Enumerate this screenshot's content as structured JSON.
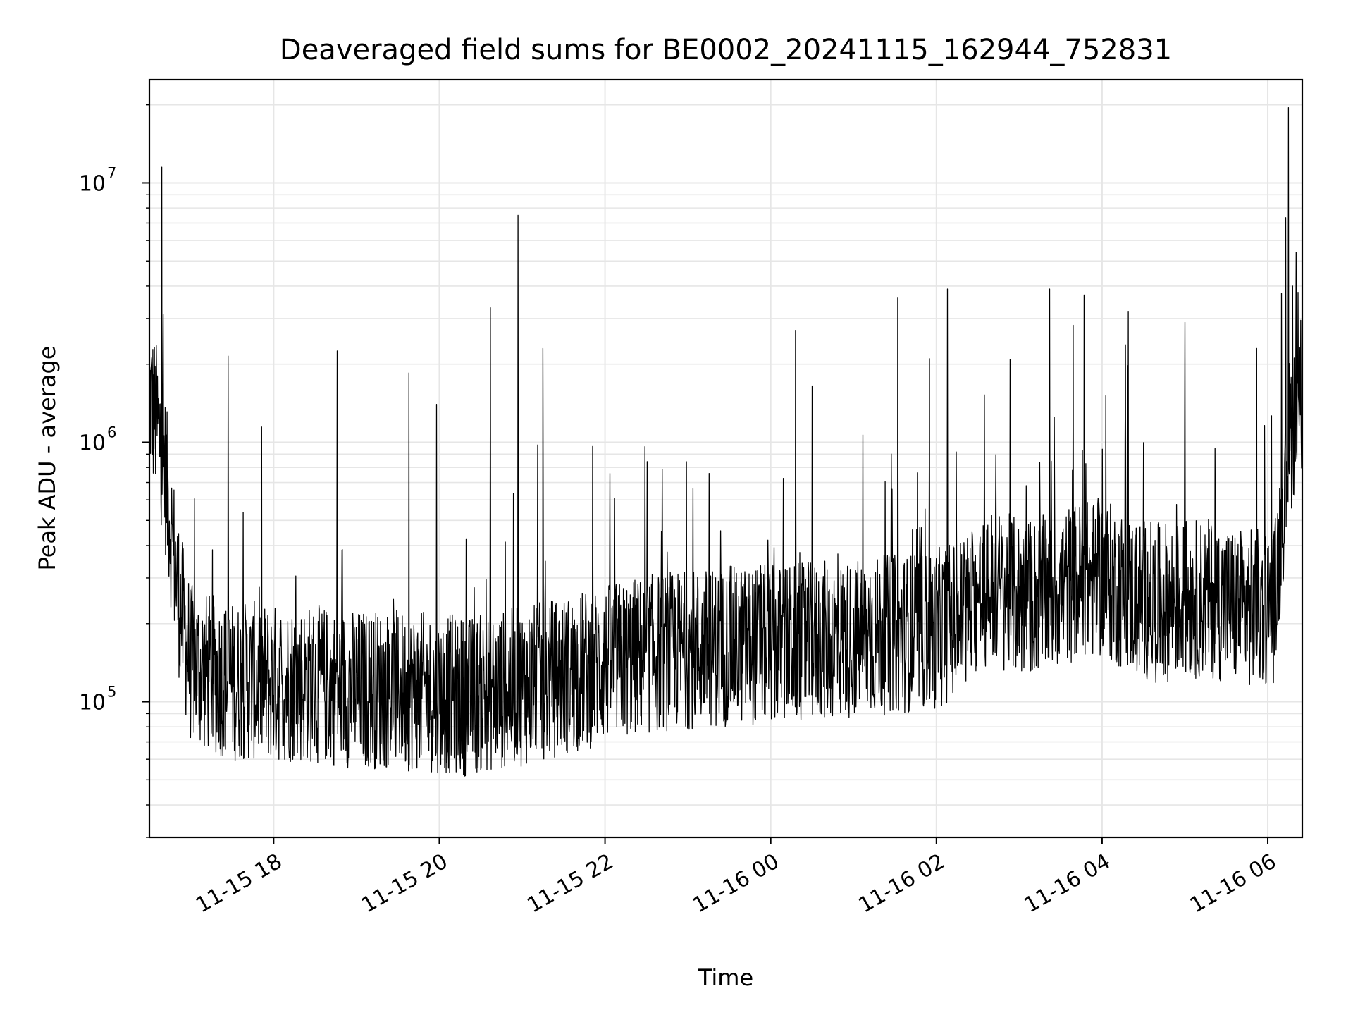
{
  "chart_data": {
    "type": "line",
    "title": "Deaveraged field sums for BE0002_20241115_162944_752831",
    "xlabel": "Time",
    "ylabel": "Peak ADU - average",
    "yscale": "log",
    "ylim": [
      30000,
      25000000
    ],
    "xlim": [
      "2024-11-15 16:30",
      "2024-11-16 06:25"
    ],
    "grid": true,
    "line_color": "#000000",
    "grid_color": "#e6e6e6",
    "x_ticks": [
      {
        "value": "2024-11-15 18:00",
        "label": "11-15 18"
      },
      {
        "value": "2024-11-15 20:00",
        "label": "11-15 20"
      },
      {
        "value": "2024-11-15 22:00",
        "label": "11-15 22"
      },
      {
        "value": "2024-11-16 00:00",
        "label": "11-16 00"
      },
      {
        "value": "2024-11-16 02:00",
        "label": "11-16 02"
      },
      {
        "value": "2024-11-16 04:00",
        "label": "11-16 04"
      },
      {
        "value": "2024-11-16 06:00",
        "label": "11-16 06"
      }
    ],
    "y_ticks": [
      {
        "value": 100000,
        "base": "10",
        "exp": "5"
      },
      {
        "value": 1000000,
        "base": "10",
        "exp": "6"
      },
      {
        "value": 10000000,
        "base": "10",
        "exp": "7"
      }
    ],
    "series": [
      {
        "x": [
          "2024-11-15 16:30",
          "2024-11-15 16:35",
          "2024-11-15 16:40",
          "2024-11-15 16:45",
          "2024-11-15 16:50",
          "2024-11-15 16:55",
          "2024-11-15 17:00",
          "2024-11-15 17:10",
          "2024-11-15 17:20",
          "2024-11-15 17:30",
          "2024-11-15 17:45",
          "2024-11-15 18:00",
          "2024-11-15 18:20",
          "2024-11-15 18:40",
          "2024-11-15 19:00",
          "2024-11-15 19:20",
          "2024-11-15 19:40",
          "2024-11-15 20:00",
          "2024-11-15 20:20",
          "2024-11-15 20:40",
          "2024-11-15 21:00",
          "2024-11-15 21:20",
          "2024-11-15 21:40",
          "2024-11-15 22:00",
          "2024-11-15 22:20",
          "2024-11-15 22:40",
          "2024-11-15 23:00",
          "2024-11-15 23:20",
          "2024-11-15 23:40",
          "2024-11-16 00:00",
          "2024-11-16 00:20",
          "2024-11-16 00:40",
          "2024-11-16 01:00",
          "2024-11-16 01:20",
          "2024-11-16 01:40",
          "2024-11-16 02:00",
          "2024-11-16 02:20",
          "2024-11-16 02:40",
          "2024-11-16 03:00",
          "2024-11-16 03:20",
          "2024-11-16 03:40",
          "2024-11-16 04:00",
          "2024-11-16 04:20",
          "2024-11-16 04:40",
          "2024-11-16 05:00",
          "2024-11-16 05:20",
          "2024-11-16 05:40",
          "2024-11-16 05:55",
          "2024-11-16 06:05",
          "2024-11-16 06:10",
          "2024-11-16 06:15",
          "2024-11-16 06:20",
          "2024-11-16 06:25"
        ],
        "y": [
          1500000,
          1200000,
          900000,
          500000,
          280000,
          190000,
          140000,
          130000,
          125000,
          120000,
          120000,
          118000,
          118000,
          115000,
          112000,
          112000,
          110000,
          108000,
          105000,
          110000,
          115000,
          122000,
          130000,
          140000,
          148000,
          155000,
          160000,
          162000,
          165000,
          165000,
          168000,
          172000,
          175000,
          180000,
          185000,
          190000,
          220000,
          280000,
          250000,
          260000,
          290000,
          300000,
          260000,
          240000,
          250000,
          250000,
          230000,
          230000,
          240000,
          500000,
          1000000,
          1300000,
          1400000
        ],
        "peaks": [
          {
            "x": "2024-11-15 16:39",
            "y": 11500000
          },
          {
            "x": "2024-11-15 20:57",
            "y": 7500000
          },
          {
            "x": "2024-11-15 20:37",
            "y": 3300000
          },
          {
            "x": "2024-11-15 21:15",
            "y": 2300000
          },
          {
            "x": "2024-11-15 18:46",
            "y": 2250000
          },
          {
            "x": "2024-11-15 17:27",
            "y": 2150000
          },
          {
            "x": "2024-11-15 19:38",
            "y": 1850000
          },
          {
            "x": "2024-11-15 19:58",
            "y": 1400000
          },
          {
            "x": "2024-11-16 00:18",
            "y": 2700000
          },
          {
            "x": "2024-11-16 00:30",
            "y": 1650000
          },
          {
            "x": "2024-11-16 01:32",
            "y": 3600000
          },
          {
            "x": "2024-11-16 02:08",
            "y": 3900000
          },
          {
            "x": "2024-11-16 01:55",
            "y": 2100000
          },
          {
            "x": "2024-11-16 03:22",
            "y": 3900000
          },
          {
            "x": "2024-11-16 03:47",
            "y": 3700000
          },
          {
            "x": "2024-11-16 04:19",
            "y": 3200000
          },
          {
            "x": "2024-11-16 05:00",
            "y": 2900000
          },
          {
            "x": "2024-11-16 05:52",
            "y": 2300000
          },
          {
            "x": "2024-11-16 06:15",
            "y": 19500000
          },
          {
            "x": "2024-11-16 06:18",
            "y": 4000000
          }
        ]
      }
    ]
  }
}
